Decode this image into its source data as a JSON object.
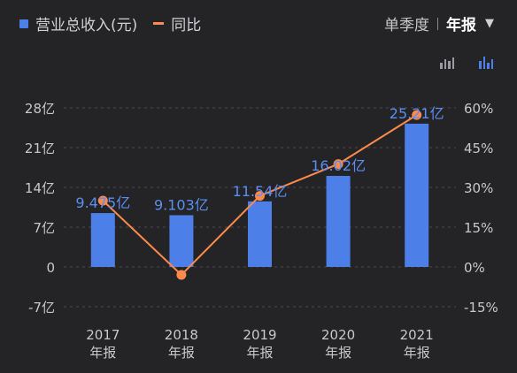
{
  "legend": {
    "revenue_label": "营业总收入(元)",
    "yoy_label": "同比"
  },
  "period": {
    "quarter_label": "单季度",
    "annual_label": "年报"
  },
  "icons": {
    "caret": "caret-down-icon",
    "line_toggle": "line-chart-toggle-icon",
    "bar_toggle": "bar-chart-toggle-icon"
  },
  "colors": {
    "bar": "#4c7fe8",
    "line": "#ff8a4c",
    "bar_label": "#5b8ef0",
    "background": "#242426"
  },
  "chart_data": {
    "type": "bar",
    "categories": [
      "2017",
      "2018",
      "2019",
      "2020",
      "2021"
    ],
    "category_sublabel": "年报",
    "series": [
      {
        "name": "营业总收入(元)",
        "values": [
          9.475,
          9.103,
          11.54,
          16.02,
          25.21
        ],
        "labels": [
          "9.475亿",
          "9.103亿",
          "11.54亿",
          "16.02亿",
          "25.21亿"
        ],
        "axis": "left"
      },
      {
        "name": "同比",
        "type": "line",
        "values": [
          25,
          -3,
          26.8,
          38.8,
          57.3
        ],
        "axis": "right"
      }
    ],
    "left_ticks": [
      "28亿",
      "21亿",
      "14亿",
      "7亿",
      "0",
      "-7亿"
    ],
    "left_ylim": [
      -7,
      28
    ],
    "right_ticks": [
      "60%",
      "45%",
      "30%",
      "15%",
      "0%",
      "-15%"
    ],
    "right_ylim": [
      -15,
      60
    ]
  }
}
